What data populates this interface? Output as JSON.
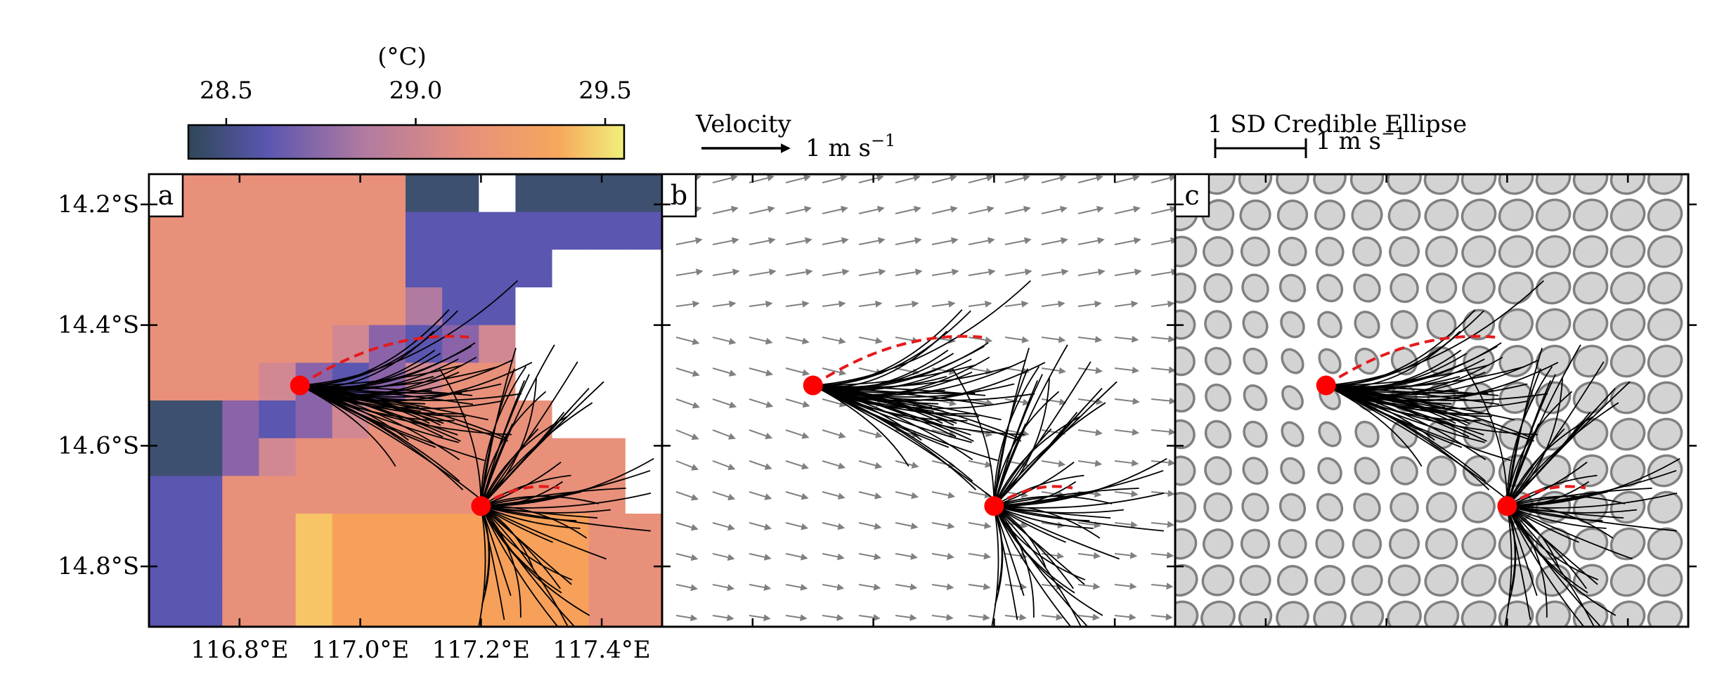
{
  "colorbar": {
    "label": "(°C)",
    "ticks": [
      "28.5",
      "29.0",
      "29.5"
    ],
    "tick_values": [
      28.5,
      29.0,
      29.5
    ],
    "range": [
      28.4,
      29.55
    ],
    "colors": [
      "#2f4858",
      "#6a5acd",
      "#b07aa1",
      "#e8907a",
      "#f6a05a",
      "#f0f07a"
    ]
  },
  "legend_b": {
    "title": "Velocity",
    "value_label": "1 m s",
    "value_exp": "−1"
  },
  "legend_c": {
    "title": "1 SD Credible Ellipse",
    "value_label": "1 m s",
    "value_exp": "−1"
  },
  "panels": [
    {
      "letter": "a"
    },
    {
      "letter": "b"
    },
    {
      "letter": "c"
    }
  ],
  "axes": {
    "x_ticks": [
      "116.8°E",
      "117.0°E",
      "117.2°E",
      "117.4°E"
    ],
    "x_tick_values": [
      116.8,
      117.0,
      117.2,
      117.4
    ],
    "y_ticks": [
      "14.2°S",
      "14.4°S",
      "14.6°S",
      "14.8°S"
    ],
    "y_tick_values": [
      14.2,
      14.4,
      14.6,
      14.8
    ],
    "xlim": [
      116.65,
      117.5
    ],
    "ylim": [
      14.15,
      14.9
    ]
  },
  "chart_data": {
    "type": "heatmap",
    "start_points": [
      {
        "lon": 116.9,
        "lat": 14.5
      },
      {
        "lon": 117.2,
        "lat": 14.7
      }
    ],
    "mean_track_ends": [
      {
        "lon": 117.18,
        "lat": 14.42
      },
      {
        "lon": 117.33,
        "lat": 14.67
      }
    ],
    "colors": {
      "start_marker": "#ff0000",
      "mean_track": "#e41a1c",
      "trajectory": "#000000",
      "vector": "#808080",
      "ellipse_fill": "#d3d3d3",
      "ellipse_edge": "#808080"
    }
  }
}
